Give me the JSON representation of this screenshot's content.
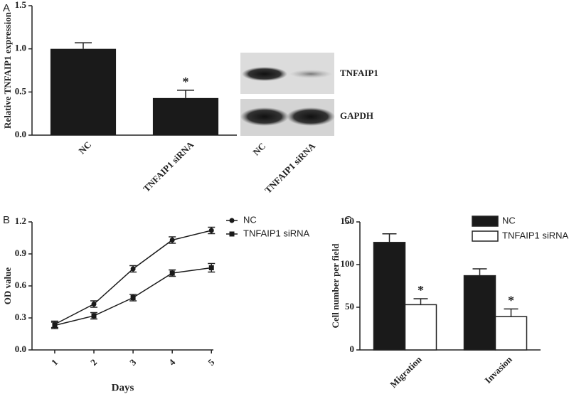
{
  "chart_data": [
    {
      "type": "bar",
      "panel": "A",
      "ylabel": "Relative TNFAIP1 expression",
      "categories": [
        "NC",
        "TNFAIP1 siRNA"
      ],
      "values": [
        1.0,
        0.43
      ],
      "errors": [
        0.07,
        0.09
      ],
      "annotations": [
        null,
        "*"
      ],
      "color": "#1a1a1a",
      "ylim": [
        0,
        1.5
      ],
      "yticks": [
        {
          "value": 0,
          "label": "0.0"
        },
        {
          "value": 0.5,
          "label": "0.5"
        },
        {
          "value": 1.0,
          "label": "1.0"
        },
        {
          "value": 1.5,
          "label": "1.5"
        }
      ]
    },
    {
      "type": "line",
      "panel": "B",
      "xlabel": "Days",
      "ylabel": "OD value",
      "x": [
        1,
        2,
        3,
        4,
        5
      ],
      "xlim": [
        0.42,
        5.05
      ],
      "xticks": [
        1,
        2,
        3,
        4,
        5
      ],
      "series": [
        {
          "name": "NC",
          "color": "#1a1a1a",
          "marker": "circle",
          "values": [
            0.24,
            0.43,
            0.76,
            1.03,
            1.12
          ],
          "errors": [
            0.03,
            0.03,
            0.03,
            0.03,
            0.03
          ]
        },
        {
          "name": "TNFAIP1 siRNA",
          "color": "#1a1a1a",
          "marker": "square",
          "values": [
            0.23,
            0.32,
            0.49,
            0.72,
            0.77
          ],
          "errors": [
            0.03,
            0.03,
            0.03,
            0.03,
            0.04
          ]
        }
      ],
      "legend": "right",
      "ylim": [
        0,
        1.2
      ],
      "yticks": [
        {
          "value": 0,
          "label": "0.0"
        },
        {
          "value": 0.3,
          "label": "0.3"
        },
        {
          "value": 0.6,
          "label": "0.6"
        },
        {
          "value": 0.9,
          "label": "0.9"
        },
        {
          "value": 1.2,
          "label": "1.2"
        }
      ]
    },
    {
      "type": "grouped_bar",
      "panel": "C",
      "ylabel": "Cell number per field",
      "categories": [
        "Migration",
        "Invasion"
      ],
      "series": [
        {
          "name": "NC",
          "color": "#1a1a1a",
          "values": [
            126,
            87
          ],
          "errors": [
            10,
            8
          ],
          "annotations": [
            null,
            null
          ]
        },
        {
          "name": "TNFAIP1 siRNA",
          "color": "#ffffff",
          "values": [
            53,
            39
          ],
          "errors": [
            7,
            9
          ],
          "annotations": [
            "*",
            "*"
          ]
        }
      ],
      "legend": "upper right",
      "ylim": [
        0,
        150
      ],
      "yticks": [
        0,
        50,
        100,
        150
      ]
    }
  ],
  "blot": {
    "bands": [
      "TNFAIP1",
      "GAPDH"
    ],
    "lanes": [
      "NC",
      "TNFAIP1 siRNA"
    ]
  }
}
